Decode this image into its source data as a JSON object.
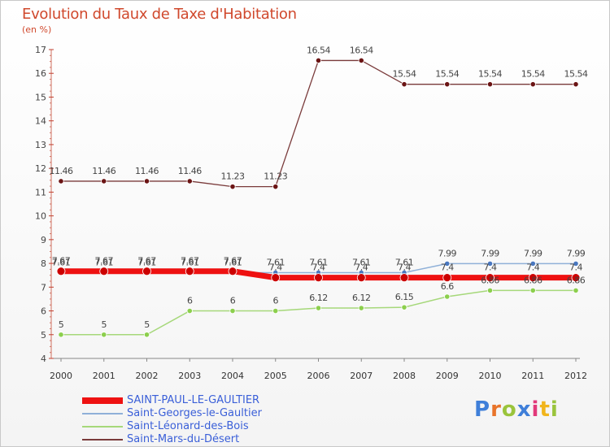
{
  "title": "Evolution du Taux de Taxe d'Habitation",
  "subtitle": "(en %)",
  "logo": {
    "text": "Proxiti",
    "colors": [
      "#3f7fd9",
      "#e8742a",
      "#9ac43c",
      "#3f7fd9",
      "#e23a7a",
      "#f1b51c",
      "#9ac43c"
    ]
  },
  "chart_data": {
    "type": "line",
    "title": "Evolution du Taux de Taxe d'Habitation",
    "ylabel": "(en %)",
    "xlabel": "",
    "ylim": [
      4,
      17
    ],
    "yticks": [
      4,
      5,
      6,
      7,
      8,
      9,
      10,
      11,
      12,
      13,
      14,
      15,
      16,
      17
    ],
    "grid": false,
    "legend_position": "bottom-left",
    "categories": [
      "2000",
      "2001",
      "2002",
      "2003",
      "2004",
      "2005",
      "2006",
      "2007",
      "2008",
      "2009",
      "2010",
      "2011",
      "2012"
    ],
    "series": [
      {
        "name": "Saint-Mars-du-Désert",
        "color": "#7a3b3b",
        "markerColor": "#6b1414",
        "width": 1.3,
        "marker": 3.2,
        "values": [
          11.46,
          11.46,
          11.46,
          11.46,
          11.23,
          11.23,
          16.54,
          16.54,
          15.54,
          15.54,
          15.54,
          15.54,
          15.54
        ],
        "labels": [
          "11.46",
          "11.46",
          "11.46",
          "11.46",
          "11.23",
          "11.23",
          "16.54",
          "16.54",
          "15.54",
          "15.54",
          "15.54",
          "15.54",
          "15.54"
        ]
      },
      {
        "name": "Saint-Léonard-des-Bois",
        "color": "#a6d87a",
        "markerColor": "#8ccf4d",
        "width": 1.5,
        "marker": 3.2,
        "values": [
          5,
          5,
          5,
          6,
          6,
          6,
          6.12,
          6.12,
          6.15,
          6.6,
          6.86,
          6.86,
          6.86
        ],
        "labels": [
          "5",
          "5",
          "5",
          "6",
          "6",
          "6",
          "6.12",
          "6.12",
          "6.15",
          "6.6",
          "6.86",
          "6.86",
          "6.86"
        ]
      },
      {
        "name": "Saint-Georges-le-Gaultier",
        "color": "#8fb0d8",
        "markerColor": "#4a78c0",
        "width": 1.5,
        "marker": 3.2,
        "values": [
          7.61,
          7.61,
          7.61,
          7.61,
          7.61,
          7.61,
          7.61,
          7.61,
          7.61,
          7.99,
          7.99,
          7.99,
          7.99
        ],
        "labels": [
          "7.61",
          "7.61",
          "7.61",
          "7.61",
          "7.61",
          "7.61",
          "7.61",
          "7.61",
          "7.61",
          "7.99",
          "7.99",
          "7.99",
          "7.99"
        ]
      },
      {
        "name": "SAINT-PAUL-LE-GAULTIER",
        "color": "#ee1111",
        "markerColor": "#cc0000",
        "width": 7,
        "marker": 5,
        "values": [
          7.67,
          7.67,
          7.67,
          7.67,
          7.67,
          7.4,
          7.4,
          7.4,
          7.4,
          7.4,
          7.4,
          7.4,
          7.4
        ],
        "labels": [
          "7.67",
          "7.67",
          "7.67",
          "7.67",
          "7.67",
          "7.4",
          "7.4",
          "7.4",
          "7.4",
          "7.4",
          "7.4",
          "7.4",
          "7.4"
        ]
      }
    ],
    "legend": [
      {
        "name": "SAINT-PAUL-LE-GAULTIER",
        "color": "#ee1111",
        "thick": true
      },
      {
        "name": "Saint-Georges-le-Gaultier",
        "color": "#8fb0d8",
        "thick": false
      },
      {
        "name": "Saint-Léonard-des-Bois",
        "color": "#a6d87a",
        "thick": false
      },
      {
        "name": "Saint-Mars-du-Désert",
        "color": "#7a3b3b",
        "thick": false
      }
    ]
  }
}
